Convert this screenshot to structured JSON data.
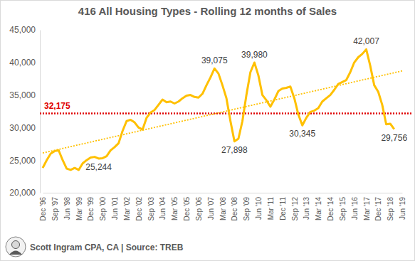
{
  "chart_data": {
    "type": "line",
    "title": "416 All Housing Types - Rolling 12 months of Sales",
    "footer": "Scott Ingram CPA, CA | Source: TREB",
    "categories": [
      "Dec '96",
      null,
      null,
      "Sep '97",
      null,
      null,
      "Jun '98",
      null,
      null,
      "Mar '99",
      null,
      null,
      "Dec '99",
      null,
      null,
      "Sep '00",
      null,
      null,
      "Jun '01",
      null,
      null,
      "Mar '02",
      null,
      null,
      "Dec '02",
      null,
      null,
      "Sep '03",
      null,
      null,
      "Jun '04",
      null,
      null,
      "Mar '05",
      null,
      null,
      "Dec '05",
      null,
      null,
      "Sep '06",
      null,
      null,
      "Jun '07",
      null,
      null,
      "Mar '08",
      null,
      null,
      "Dec '08",
      null,
      null,
      "Sep '09",
      null,
      null,
      "Jun '10",
      null,
      null,
      "Mar '11",
      null,
      null,
      "Dec '11",
      null,
      null,
      "Sep '12",
      null,
      null,
      "Jun '13",
      null,
      null,
      "Mar '14",
      null,
      null,
      "Dec '14",
      null,
      null,
      "Sep '15",
      null,
      null,
      "Jun '16",
      null,
      null,
      "Mar '17",
      null,
      null,
      "Dec '17",
      null,
      null,
      "Sep '18",
      null,
      null,
      "Jun '19"
    ],
    "series": [
      {
        "color": "#ffc000",
        "line_style": "solid",
        "values": [
          23800,
          25000,
          26000,
          26400,
          26500,
          25000,
          23700,
          23500,
          23800,
          23500,
          24500,
          25000,
          25400,
          25500,
          25244,
          25300,
          25600,
          26500,
          27000,
          27600,
          29500,
          31000,
          31200,
          30800,
          30000,
          29700,
          31500,
          32300,
          32700,
          33500,
          34300,
          33900,
          34000,
          33700,
          34000,
          34500,
          34900,
          35000,
          34700,
          34600,
          35200,
          36500,
          37700,
          39075,
          38300,
          36500,
          34500,
          31000,
          27898,
          28300,
          31000,
          35000,
          38500,
          39980,
          38000,
          35000,
          34200,
          33200,
          34300,
          35600,
          36000,
          36100,
          36300,
          34500,
          32000,
          30345,
          31500,
          32400,
          32600,
          33000,
          34000,
          34500,
          35000,
          35800,
          36700,
          37000,
          37300,
          38500,
          40000,
          40800,
          41300,
          42007,
          39500,
          36500,
          35500,
          33500,
          30500,
          30600,
          29756,
          null,
          null
        ],
        "value_labels": [
          null,
          null,
          null,
          null,
          null,
          null,
          null,
          null,
          null,
          null,
          null,
          null,
          null,
          null,
          "25,244",
          null,
          null,
          null,
          null,
          null,
          null,
          null,
          null,
          null,
          null,
          null,
          null,
          null,
          null,
          null,
          null,
          null,
          null,
          null,
          null,
          null,
          null,
          null,
          null,
          null,
          null,
          null,
          null,
          "39,075",
          null,
          null,
          null,
          null,
          "27,898",
          null,
          null,
          null,
          null,
          "39,980",
          null,
          null,
          null,
          null,
          null,
          null,
          null,
          null,
          null,
          null,
          null,
          "30,345",
          null,
          null,
          null,
          null,
          null,
          null,
          null,
          null,
          null,
          null,
          null,
          null,
          null,
          null,
          null,
          "42,007",
          null,
          null,
          null,
          null,
          null,
          null,
          "29,756",
          null,
          null
        ]
      }
    ],
    "trendline": {
      "values": [
        26100,
        38700
      ],
      "color": "#ffc000",
      "line_style": "dotted"
    },
    "reference_line": {
      "value": 32175,
      "label": "32,175",
      "color": "#e00000",
      "line_style": "dotted"
    },
    "ylim": [
      20000,
      45000
    ],
    "yticks": [
      {
        "value": 20000,
        "label": "20,000"
      },
      {
        "value": 25000,
        "label": "25,000"
      },
      {
        "value": 30000,
        "label": "30,000"
      },
      {
        "value": 35000,
        "label": "35,000"
      },
      {
        "value": 40000,
        "label": "40,000"
      },
      {
        "value": 45000,
        "label": "45,000"
      }
    ],
    "grid": false,
    "data_labels": true
  }
}
